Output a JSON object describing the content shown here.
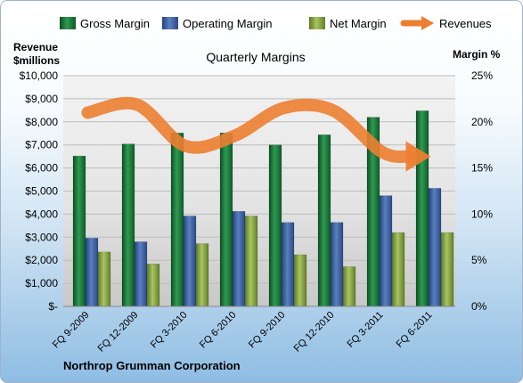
{
  "chart_data": {
    "type": "bar",
    "title": "Quarterly Margins",
    "left_axis_title": [
      "Revenue",
      "$millions"
    ],
    "right_axis_title": "Margin %",
    "footer": "Northrop Grumman Corporation",
    "categories": [
      "FQ 9-2009",
      "FQ 12-2009",
      "FQ 3-2010",
      "FQ 6-2010",
      "FQ 9-2010",
      "FQ 12-2010",
      "FQ 3-2011",
      "FQ 6-2011"
    ],
    "left_ticks": [
      "$-",
      "$1,000",
      "$2,000",
      "$3,000",
      "$4,000",
      "$5,000",
      "$6,000",
      "$7,000",
      "$8,000",
      "$9,000",
      "$10,000"
    ],
    "right_ticks": [
      "0%",
      "5%",
      "10%",
      "15%",
      "20%",
      "25%"
    ],
    "ylim_left": [
      0,
      10000
    ],
    "ylim_right": [
      0,
      25
    ],
    "series": [
      {
        "name": "Gross Margin",
        "axis": "right",
        "color": "#1a7a3a",
        "values": [
          16.3,
          17.6,
          18.8,
          18.8,
          17.5,
          18.6,
          20.5,
          21.2
        ]
      },
      {
        "name": "Operating Margin",
        "axis": "right",
        "color": "#3d63a6",
        "values": [
          7.4,
          7.0,
          9.8,
          10.3,
          9.1,
          9.1,
          12.0,
          12.8
        ]
      },
      {
        "name": "Net Margin",
        "axis": "right",
        "color": "#8aa844",
        "values": [
          5.9,
          4.6,
          6.8,
          9.8,
          5.6,
          4.3,
          8.0,
          8.0
        ]
      },
      {
        "name": "Revenues",
        "axis": "left",
        "type": "line",
        "color": "#ec7e31",
        "values": [
          8400,
          8750,
          6950,
          7400,
          8600,
          8500,
          6700,
          6500
        ]
      }
    ],
    "legend_position": "top",
    "grid": true
  }
}
